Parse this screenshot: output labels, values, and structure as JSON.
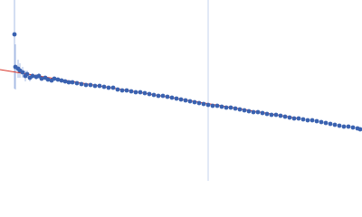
{
  "chart_data": {
    "type": "scatter",
    "xlim": [
      0,
      400
    ],
    "ylim": [
      0,
      200
    ],
    "color": "#3a62b0",
    "error_color": "#a9bde4",
    "x": [
      16,
      17,
      20,
      22,
      25,
      28,
      30,
      33,
      36,
      40,
      43,
      46,
      50,
      53,
      57,
      60,
      64,
      68,
      72,
      76,
      80,
      85,
      90,
      95,
      100,
      105,
      110,
      115,
      120,
      125,
      130,
      135,
      140,
      145,
      150,
      155,
      160,
      165,
      170,
      175,
      180,
      185,
      190,
      195,
      200,
      205,
      210,
      215,
      220,
      225,
      230,
      235,
      240,
      245,
      250,
      255,
      260,
      265,
      270,
      275,
      280,
      285,
      290,
      295,
      300,
      305,
      310,
      315,
      320,
      325,
      330,
      335,
      340,
      345,
      350,
      355,
      360,
      365,
      370,
      375,
      380,
      385,
      390,
      395,
      398
    ],
    "values": [
      162,
      126,
      124,
      122,
      120,
      116,
      118,
      114,
      116,
      115,
      116,
      113,
      114,
      112,
      111,
      113,
      112,
      111,
      110,
      109,
      109,
      108,
      107,
      106,
      106,
      105,
      105,
      104,
      103,
      103,
      101,
      100,
      100,
      99,
      98,
      98,
      97,
      96,
      95,
      94,
      94,
      93,
      92,
      91,
      90,
      89,
      88,
      87,
      86,
      85,
      84,
      83,
      83,
      82,
      81,
      81,
      80,
      79,
      78,
      77,
      76,
      76,
      75,
      74,
      73,
      73,
      72,
      71,
      70,
      69,
      69,
      68,
      67,
      67,
      66,
      65,
      64,
      63,
      62,
      61,
      60,
      60,
      59,
      58,
      57
    ],
    "errors": [
      60,
      25,
      10,
      8,
      6,
      6,
      4,
      4,
      3,
      3,
      3,
      2,
      2,
      2,
      2,
      2,
      2,
      2,
      1,
      1,
      1,
      1,
      1,
      1,
      1,
      1,
      1,
      1,
      1,
      1,
      1,
      1,
      1,
      1,
      1,
      1,
      1,
      1,
      1,
      1,
      1,
      1,
      1,
      1,
      1,
      1,
      1,
      1,
      1,
      1,
      1,
      1,
      1,
      1,
      1,
      1,
      1,
      1,
      1,
      1,
      1,
      1,
      1,
      1,
      1,
      1,
      1,
      1,
      1,
      1,
      1,
      1,
      1,
      1,
      1,
      1,
      1,
      1,
      1,
      1,
      1,
      1,
      1,
      1,
      1
    ],
    "fit": {
      "color": "#d9362b",
      "x": [
        0,
        330
      ],
      "values": [
        123,
        69
      ]
    },
    "vline": {
      "x": 230,
      "color": "#c5d3ee"
    }
  }
}
